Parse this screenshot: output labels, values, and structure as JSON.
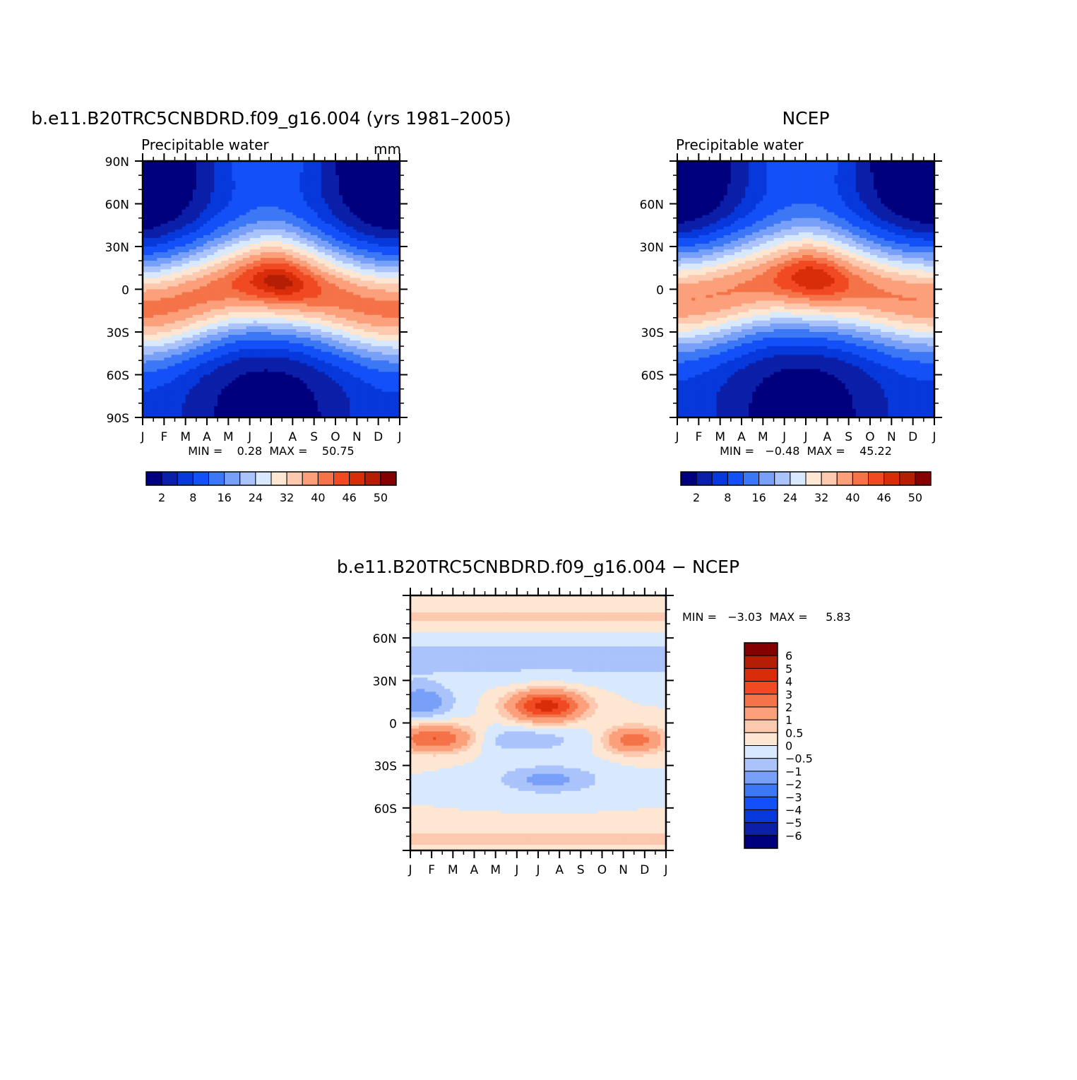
{
  "palette": [
    "#00007f",
    "#0b1fa8",
    "#0638db",
    "#1450f7",
    "#3c78f6",
    "#78a0f8",
    "#aac3fb",
    "#d8e8fd",
    "#fde6d2",
    "#fcc8ae",
    "#fba07a",
    "#f57348",
    "#f14a22",
    "#d92c08",
    "#b31e04",
    "#850000"
  ],
  "chart_data": [
    {
      "type": "heatmap",
      "title": "b.e11.B20TRC5CNBDRD.f09_g16.004 (yrs 1981–2005)",
      "subtitle": "Precipitable water",
      "units": "mm",
      "x_tick_labels": [
        "J",
        "F",
        "M",
        "A",
        "M",
        "J",
        "J",
        "A",
        "S",
        "O",
        "N",
        "D",
        "J"
      ],
      "y_tick_labels": [
        "90N",
        "60N",
        "30N",
        "0",
        "30S",
        "60S",
        "90S"
      ],
      "min_max_text": "MIN =    0.28  MAX =    50.75",
      "min": 0.28,
      "max": 50.75,
      "colorbar_levels": [
        "2",
        "8",
        "16",
        "24",
        "32",
        "40",
        "46",
        "50"
      ],
      "field_model": {
        "equator_peak_base": 41,
        "peak_lat_shift_deg": 10,
        "peak_lat_center_deg": -4
      }
    },
    {
      "type": "heatmap",
      "title": "NCEP",
      "subtitle": "Precipitable water",
      "units": "",
      "x_tick_labels": [
        "J",
        "F",
        "M",
        "A",
        "M",
        "J",
        "J",
        "A",
        "S",
        "O",
        "N",
        "D",
        "J"
      ],
      "y_tick_labels": [
        "",
        "60N",
        "30N",
        "0",
        "30S",
        "60S",
        ""
      ],
      "min_max_text": "MIN =   −0.48  MAX =    45.22",
      "min": -0.48,
      "max": 45.22,
      "colorbar_levels": [
        "2",
        "8",
        "16",
        "24",
        "32",
        "40",
        "46",
        "50"
      ],
      "field_model": {
        "equator_peak_base": 40,
        "peak_lat_shift_deg": 8,
        "peak_lat_center_deg": 0
      }
    },
    {
      "type": "heatmap",
      "title": "b.e11.B20TRC5CNBDRD.f09_g16.004 − NCEP",
      "subtitle": "",
      "x_tick_labels": [
        "J",
        "F",
        "M",
        "A",
        "M",
        "J",
        "J",
        "A",
        "S",
        "O",
        "N",
        "D",
        "J"
      ],
      "y_tick_labels": [
        "",
        "60N",
        "30N",
        "0",
        "30S",
        "60S",
        ""
      ],
      "min_max_text": "MIN =   −3.03  MAX =     5.83",
      "min": -3.03,
      "max": 5.83,
      "colorbar_levels": [
        "6",
        "5",
        "4",
        "3",
        "2",
        "1",
        "0.5",
        "0",
        "−0.5",
        "−1",
        "−2",
        "−3",
        "−4",
        "−5",
        "−6"
      ],
      "diff_levels": [
        -6,
        -5,
        -4,
        -3,
        -2,
        -1,
        -0.5,
        0,
        0.5,
        1,
        2,
        3,
        4,
        5,
        6
      ]
    }
  ]
}
